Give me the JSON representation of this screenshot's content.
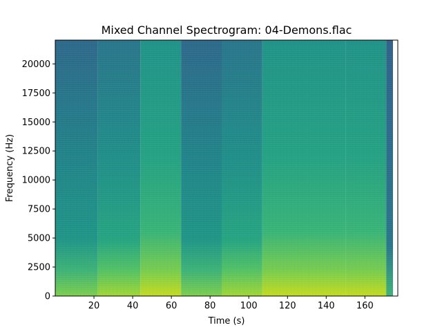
{
  "chart_data": {
    "type": "heatmap",
    "subtype": "spectrogram",
    "title": "Mixed Channel Spectrogram: 04-Demons.flac",
    "xlabel": "Time (s)",
    "ylabel": "Frequency (Hz)",
    "xlim": [
      0,
      177
    ],
    "ylim": [
      0,
      22050
    ],
    "x_ticks": [
      20,
      40,
      60,
      80,
      100,
      120,
      140,
      160
    ],
    "y_ticks": [
      0,
      2500,
      5000,
      7500,
      10000,
      12500,
      15000,
      17500,
      20000
    ],
    "data_time_range": [
      0,
      174.5
    ],
    "colormap": "viridis",
    "grid": false,
    "segments": [
      {
        "start": 0,
        "end": 22,
        "intensity": "quiet"
      },
      {
        "start": 22,
        "end": 44,
        "intensity": "moderate"
      },
      {
        "start": 44,
        "end": 65,
        "intensity": "loud"
      },
      {
        "start": 65,
        "end": 86,
        "intensity": "quiet"
      },
      {
        "start": 86,
        "end": 107,
        "intensity": "moderate"
      },
      {
        "start": 107,
        "end": 129,
        "intensity": "loud"
      },
      {
        "start": 129,
        "end": 150,
        "intensity": "moderate-loud"
      },
      {
        "start": 150,
        "end": 171,
        "intensity": "loud"
      },
      {
        "start": 171,
        "end": 174.5,
        "intensity": "fade-out"
      }
    ],
    "colors": {
      "low": "#31688e",
      "mid": "#21918c",
      "high": "#5ec962",
      "peak": "#bddf26"
    }
  }
}
